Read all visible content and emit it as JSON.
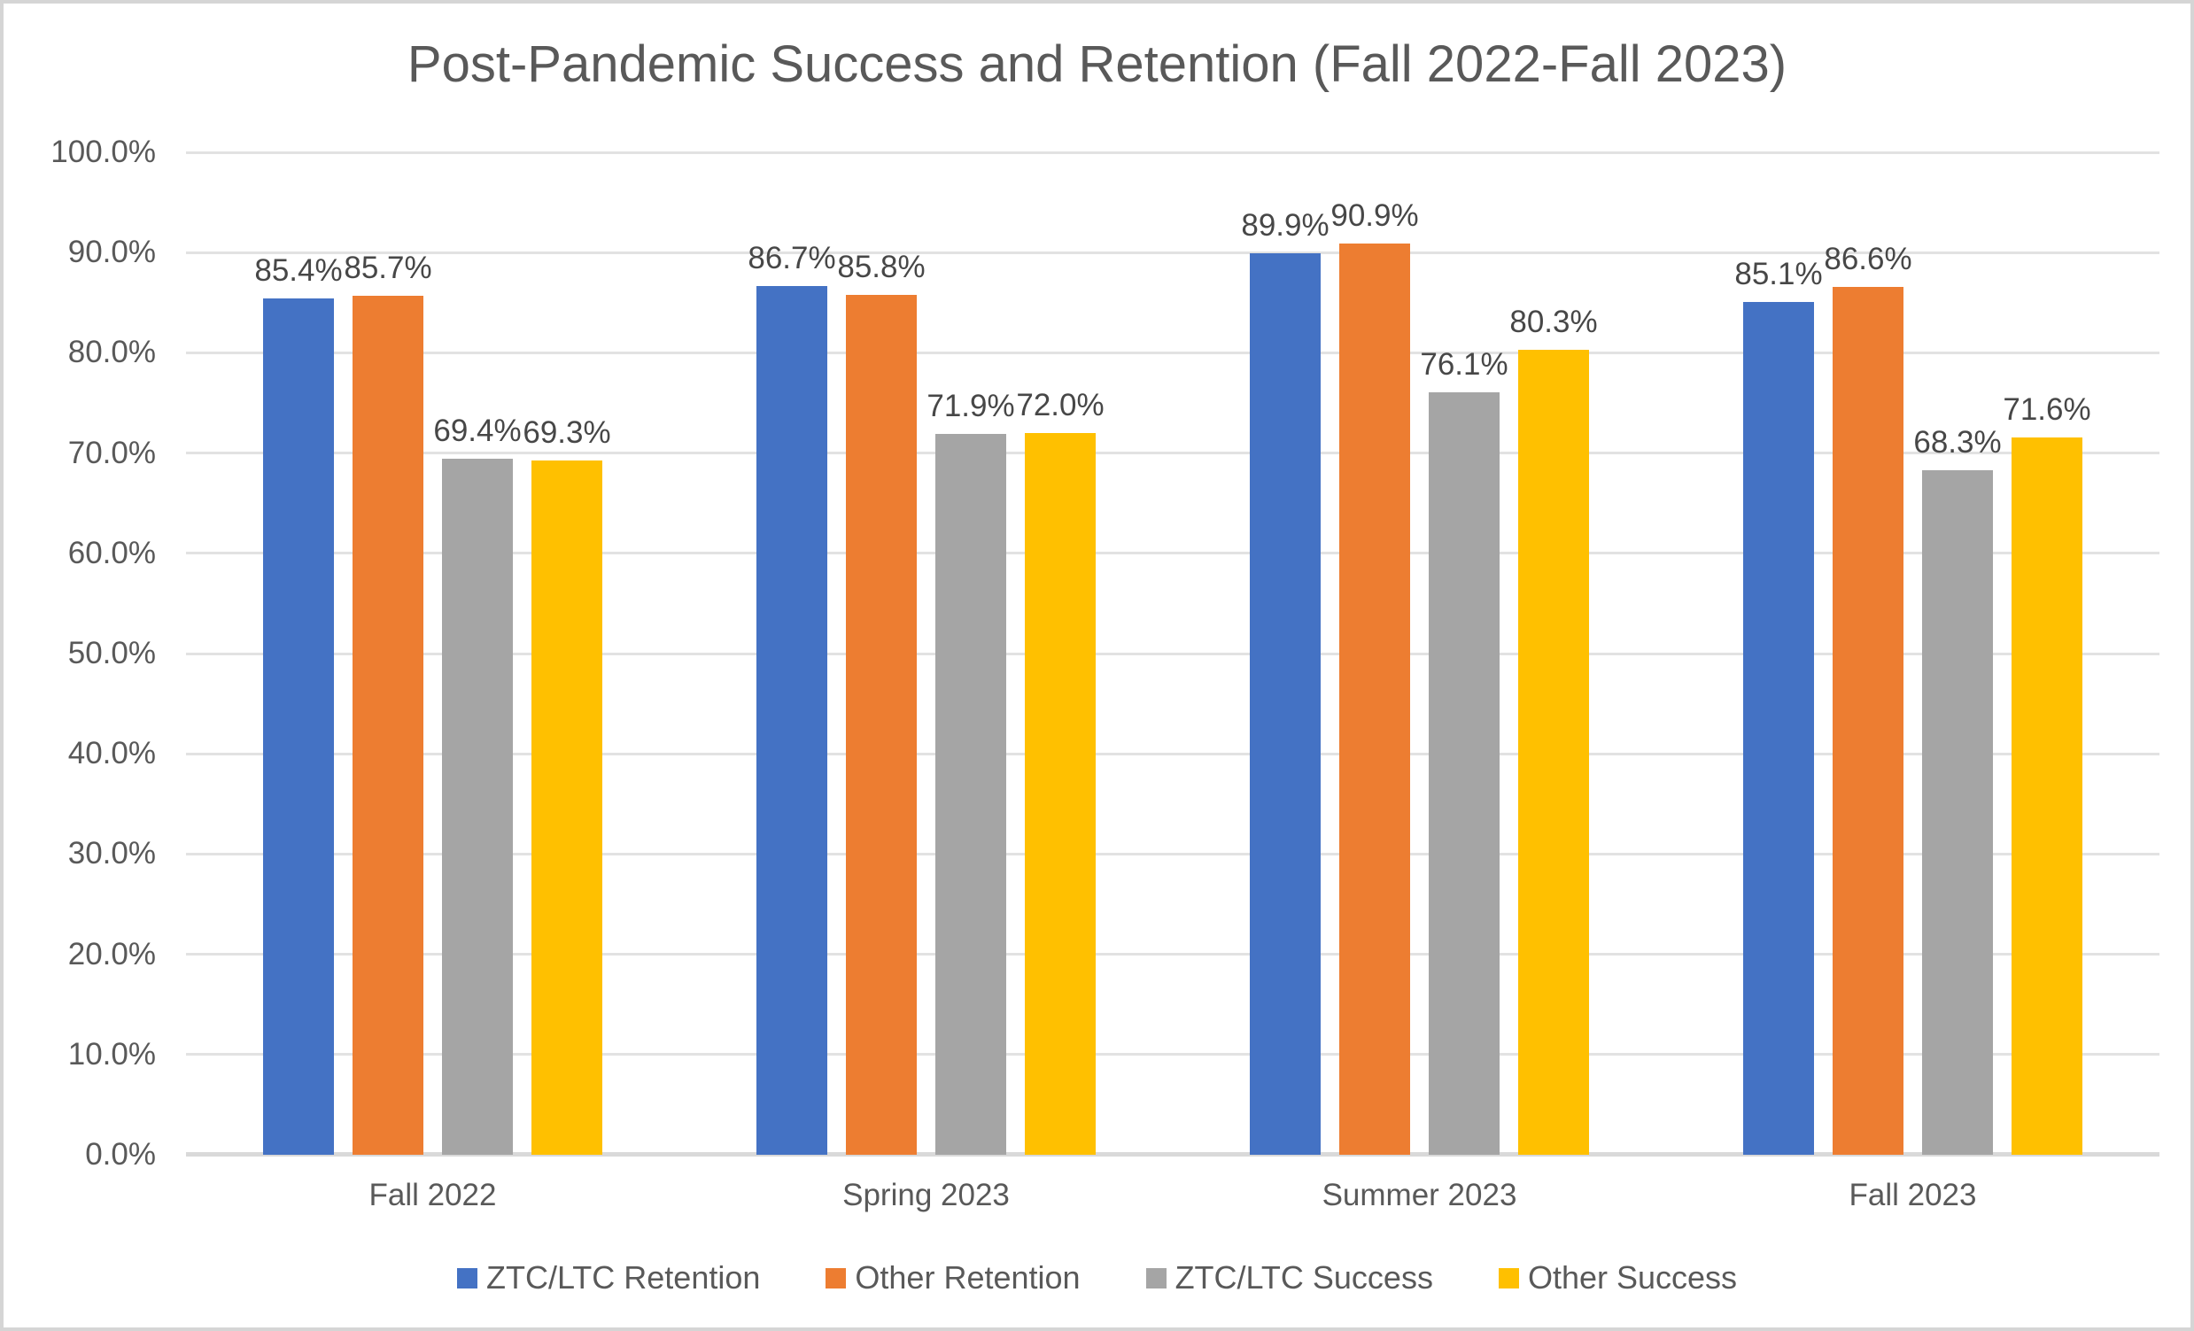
{
  "chart_data": {
    "type": "bar",
    "title": "Post-Pandemic Success and Retention (Fall 2022-Fall 2023)",
    "categories": [
      "Fall 2022",
      "Spring 2023",
      "Summer 2023",
      "Fall 2023"
    ],
    "series": [
      {
        "name": "ZTC/LTC Retention",
        "color": "#4472C4",
        "values": [
          85.4,
          86.7,
          89.9,
          85.1
        ]
      },
      {
        "name": "Other Retention",
        "color": "#ED7D31",
        "values": [
          85.7,
          85.8,
          90.9,
          86.6
        ]
      },
      {
        "name": "ZTC/LTC Success",
        "color": "#A5A5A5",
        "values": [
          69.4,
          71.9,
          76.1,
          68.3
        ]
      },
      {
        "name": "Other Success",
        "color": "#FFC000",
        "values": [
          69.3,
          72.0,
          80.3,
          71.6
        ]
      }
    ],
    "xlabel": "",
    "ylabel": "",
    "ylim": [
      0,
      100
    ],
    "ytick_labels": [
      "100.0%",
      "90.0%",
      "80.0%",
      "70.0%",
      "60.0%",
      "50.0%",
      "40.0%",
      "30.0%",
      "20.0%",
      "10.0%",
      "0.0%"
    ],
    "data_label_format": "one_decimal_percent",
    "grid": true,
    "legend_position": "bottom"
  },
  "colors": {
    "background": "#FFFFFF",
    "border": "#D5D5D5",
    "gridline": "#E2E2E2",
    "axis_line": "#D9D9D9",
    "title_text": "#595959",
    "axis_text": "#595959",
    "data_label_text": "#474747"
  }
}
